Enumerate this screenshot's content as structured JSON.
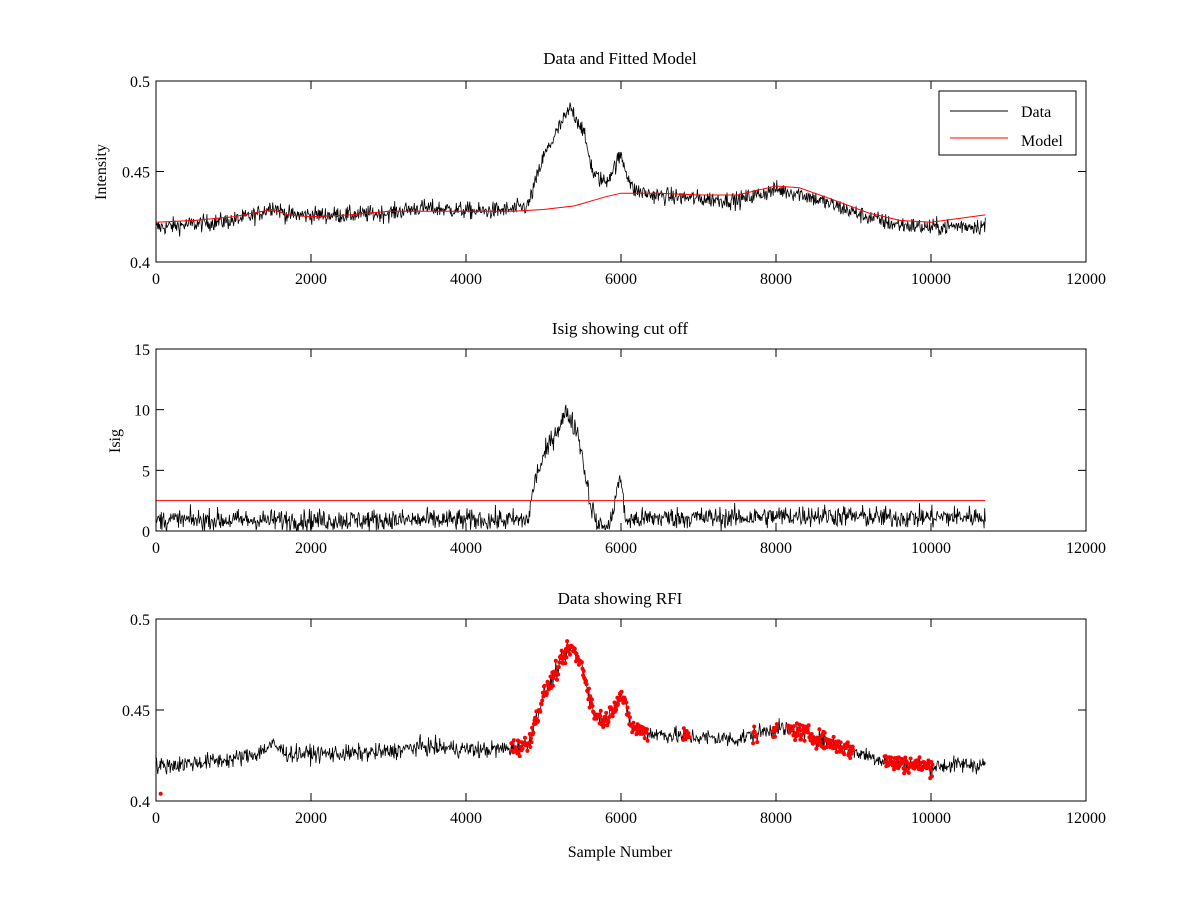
{
  "chart_data": [
    {
      "type": "line",
      "title": "Data and Fitted Model",
      "xlabel": "",
      "ylabel": "Intensity",
      "xlim": [
        0,
        12000
      ],
      "ylim": [
        0.4,
        0.5
      ],
      "xticks": [
        "0",
        "2000",
        "4000",
        "6000",
        "8000",
        "10000",
        "12000"
      ],
      "yticks": [
        "0.4",
        "0.45",
        "0.5"
      ],
      "legend": {
        "placement": "top-right",
        "entries": [
          "Data",
          "Model"
        ]
      },
      "colors": {
        "data": "#000000",
        "model": "#ff0000"
      },
      "series": [
        {
          "name": "Data",
          "x": [
            0,
            500,
            1000,
            1300,
            1500,
            1700,
            2000,
            2500,
            3000,
            3400,
            3800,
            4200,
            4600,
            4800,
            5000,
            5200,
            5350,
            5500,
            5650,
            5800,
            6000,
            6150,
            6400,
            7000,
            7500,
            8000,
            8300,
            8700,
            9100,
            9500,
            10000,
            10400,
            10700
          ],
          "y": [
            0.419,
            0.421,
            0.423,
            0.426,
            0.431,
            0.426,
            0.426,
            0.426,
            0.427,
            0.43,
            0.429,
            0.428,
            0.429,
            0.431,
            0.458,
            0.474,
            0.485,
            0.474,
            0.448,
            0.444,
            0.459,
            0.44,
            0.437,
            0.435,
            0.434,
            0.44,
            0.438,
            0.432,
            0.426,
            0.421,
            0.419,
            0.42,
            0.42
          ],
          "noise": 0.0045
        },
        {
          "name": "Model",
          "x": [
            0,
            500,
            1000,
            1500,
            1700,
            2000,
            2500,
            3000,
            3500,
            4000,
            4600,
            5000,
            5400,
            5800,
            6000,
            6500,
            7000,
            7500,
            8000,
            8300,
            8700,
            9200,
            9600,
            10000,
            10700
          ],
          "y": [
            0.422,
            0.423,
            0.425,
            0.429,
            0.426,
            0.425,
            0.426,
            0.428,
            0.428,
            0.428,
            0.428,
            0.429,
            0.431,
            0.436,
            0.438,
            0.438,
            0.437,
            0.437,
            0.442,
            0.441,
            0.435,
            0.427,
            0.423,
            0.422,
            0.426
          ]
        }
      ]
    },
    {
      "type": "line",
      "title": "Isig showing cut off",
      "xlabel": "",
      "ylabel": "Isig",
      "xlim": [
        0,
        12000
      ],
      "ylim": [
        0,
        15
      ],
      "xticks": [
        "0",
        "2000",
        "4000",
        "6000",
        "8000",
        "10000",
        "12000"
      ],
      "yticks": [
        "0",
        "5",
        "10",
        "15"
      ],
      "colors": {
        "data": "#000000",
        "cutoff": "#ff0000"
      },
      "series": [
        {
          "x": [
            0,
            1000,
            2000,
            3000,
            4000,
            4800,
            4900,
            5100,
            5300,
            5450,
            5600,
            5700,
            5850,
            5950,
            6000,
            6050,
            6100,
            6500,
            7500,
            8500,
            9500,
            10700
          ],
          "y": [
            0.9,
            0.9,
            0.9,
            0.9,
            0.9,
            0.9,
            4.5,
            7.5,
            9.8,
            8.0,
            2.5,
            0.3,
            0.2,
            3.5,
            4.5,
            1.0,
            0.9,
            1.1,
            1.1,
            1.3,
            1.1,
            1.2
          ],
          "noise": 0.85
        },
        {
          "x": [
            0,
            10700
          ],
          "y": [
            2.5,
            2.5
          ]
        }
      ]
    },
    {
      "type": "scatter",
      "title": "Data showing RFI",
      "xlabel": "Sample Number",
      "ylabel": "",
      "xlim": [
        0,
        12000
      ],
      "ylim": [
        0.4,
        0.5
      ],
      "xticks": [
        "0",
        "2000",
        "4000",
        "6000",
        "8000",
        "10000",
        "12000"
      ],
      "yticks": [
        "0.4",
        "0.45",
        "0.5"
      ],
      "colors": {
        "data": "#000000",
        "flagged": "#ff0000"
      },
      "flagged_ranges": [
        [
          4580,
          6350
        ],
        [
          6800,
          6880
        ],
        [
          7700,
          7760
        ],
        [
          7950,
          8010
        ],
        [
          8150,
          9000
        ],
        [
          9400,
          10020
        ]
      ],
      "isolated_flag_points": [
        {
          "x": 60,
          "y": 0.404
        }
      ]
    }
  ]
}
